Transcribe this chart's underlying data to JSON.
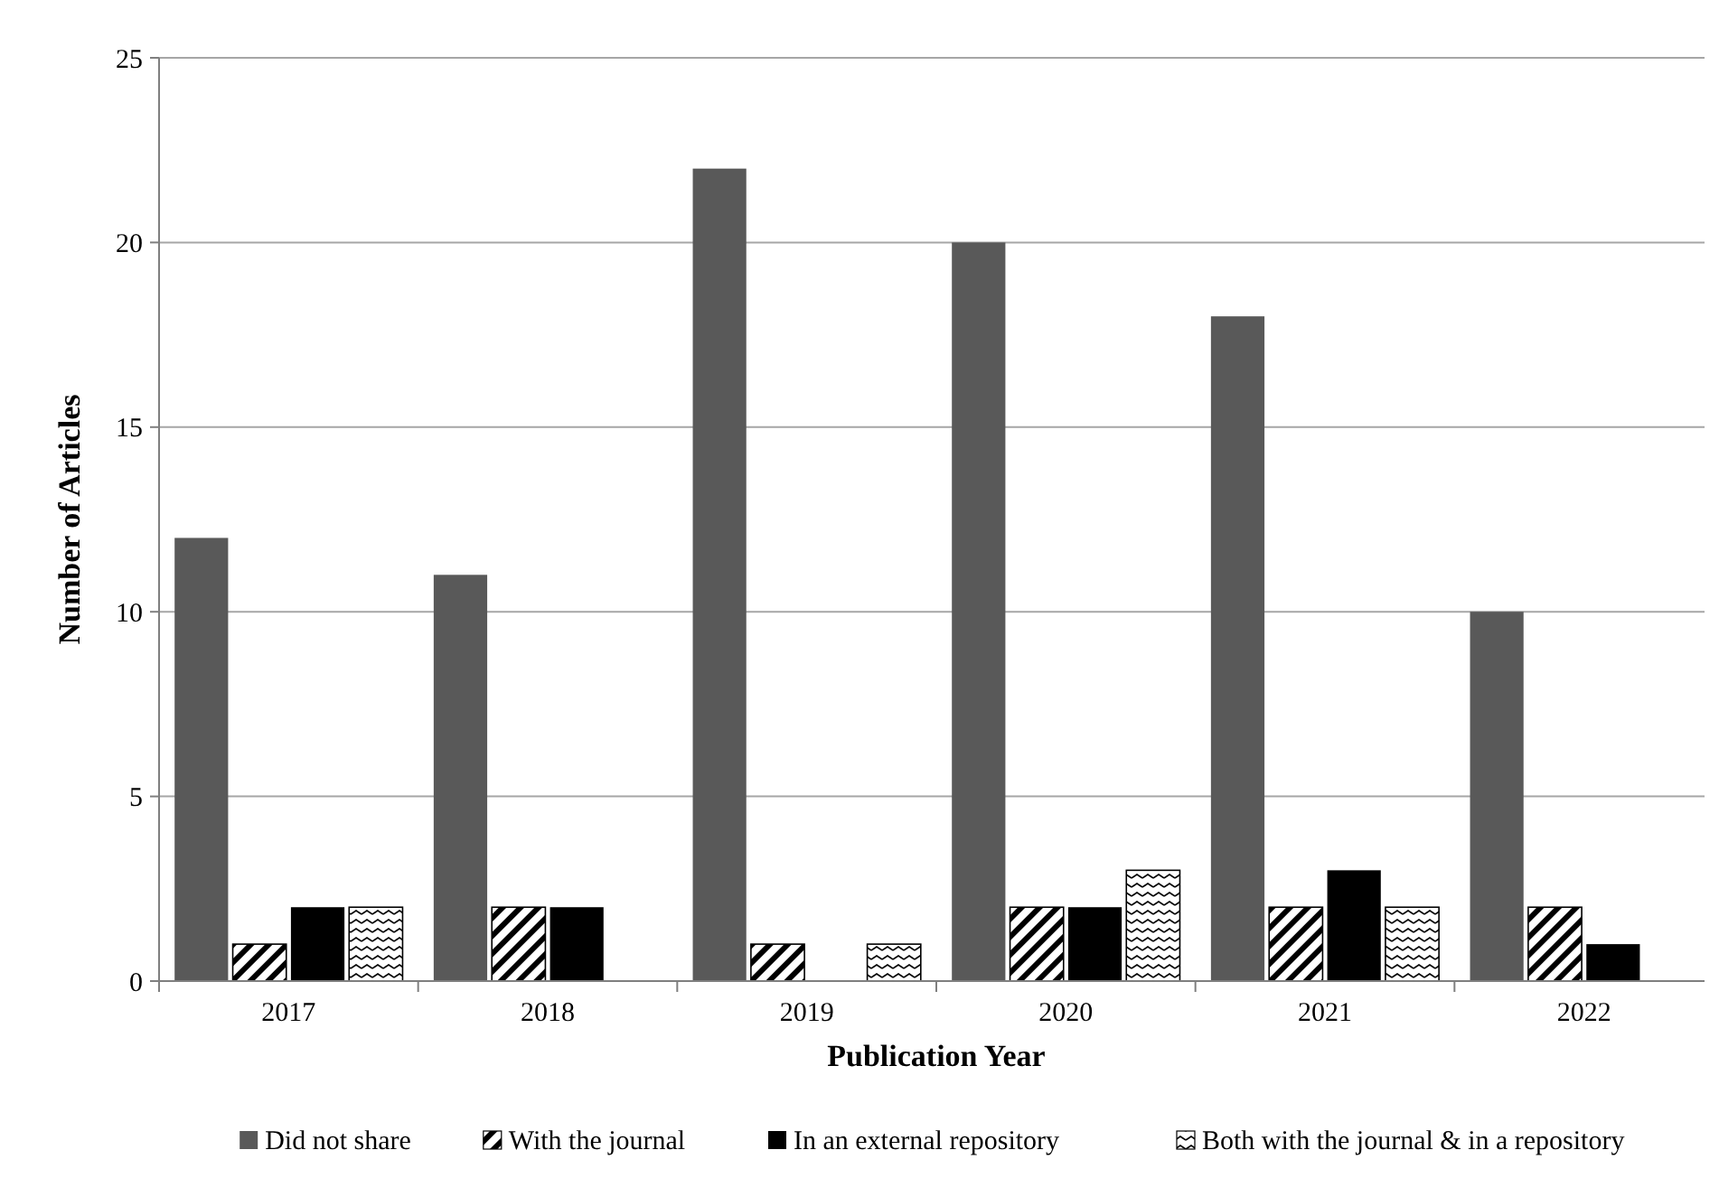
{
  "chart_data": {
    "type": "bar",
    "xlabel": "Publication Year",
    "ylabel": "Number of Articles",
    "categories": [
      "2017",
      "2018",
      "2019",
      "2020",
      "2021",
      "2022"
    ],
    "series": [
      {
        "name": "Did not share",
        "color": "#595959",
        "values": [
          12,
          11,
          22,
          20,
          18,
          10
        ]
      },
      {
        "name": "With the journal",
        "color": "#000000",
        "values": [
          1,
          2,
          1,
          2,
          2,
          2
        ]
      },
      {
        "name": "In an external repository",
        "color": "#000000",
        "values": [
          2,
          2,
          0,
          2,
          3,
          1
        ]
      },
      {
        "name": "Both with the journal & in a repository",
        "color": "#000000",
        "values": [
          2,
          0,
          1,
          3,
          2,
          0
        ]
      }
    ],
    "ylim": [
      0,
      25
    ],
    "yticks": [
      0,
      5,
      10,
      15,
      20,
      25
    ],
    "grid": "y",
    "legend": "bottom"
  }
}
